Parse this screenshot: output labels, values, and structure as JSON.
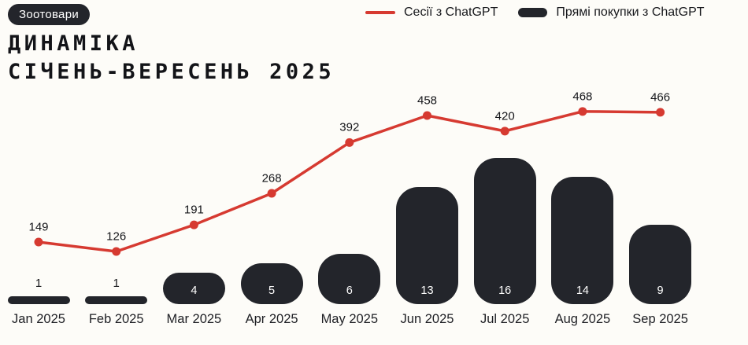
{
  "badge": {
    "label": "Зоотовари"
  },
  "title": {
    "line1": "ДИНАМІКА",
    "line2": "СІЧЕНЬ-ВЕРЕСЕНЬ 2025"
  },
  "colors": {
    "background": "#FDFCF8",
    "accent_red": "#D63A31",
    "dark": "#23252B",
    "bar_value_text": "#FFFFFF",
    "text": "#17181C"
  },
  "chart_data": {
    "type": "combo",
    "categories": [
      "Jan 2025",
      "Feb 2025",
      "Mar 2025",
      "Apr 2025",
      "May 2025",
      "Jun 2025",
      "Jul 2025",
      "Aug 2025",
      "Sep 2025"
    ],
    "series": [
      {
        "name": "Сесії з ChatGPT",
        "type": "line",
        "color": "#D63A31",
        "values": [
          149,
          126,
          191,
          268,
          392,
          458,
          420,
          468,
          466
        ]
      },
      {
        "name": "Прямі покупки з ChatGPT",
        "type": "bar",
        "color": "#23252B",
        "values": [
          1,
          1,
          4,
          5,
          6,
          13,
          16,
          14,
          9
        ]
      }
    ],
    "title": "ДИНАМІКА СІЧЕНЬ-ВЕРЕСЕНЬ 2025",
    "xlabel": "",
    "ylabel": "",
    "value_labels": true,
    "grid": false,
    "legend_position": "top-right"
  }
}
